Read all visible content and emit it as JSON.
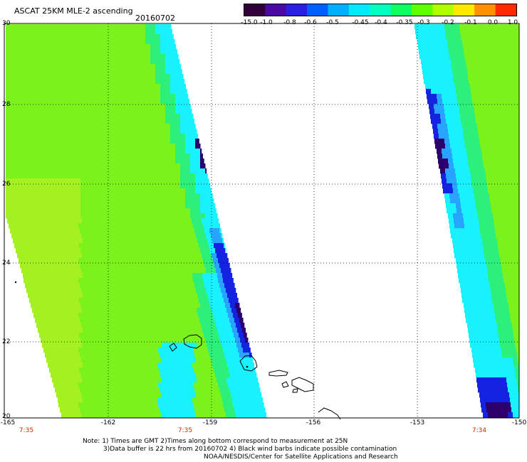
{
  "title": "ASCAT 25KM MLE-2 ascending",
  "date": "20160702",
  "colorbar": {
    "labels": [
      "-15.0",
      "-1.0",
      "-0.8",
      "-0.6",
      "-0.5",
      "-0.45",
      "-0.4",
      "-0.35",
      "-0.3",
      "-0.2",
      "-0.1",
      "0.0",
      "1.0"
    ],
    "colors": [
      "#30003a",
      "#4a0aa0",
      "#2a1ee0",
      "#0060ff",
      "#00b0ff",
      "#00eaff",
      "#00ffc0",
      "#10ff60",
      "#60ff00",
      "#b0ff00",
      "#ffe800",
      "#ff9000",
      "#ff2a00"
    ]
  },
  "lat_labels": [
    "30",
    "28",
    "26",
    "24",
    "22",
    "20"
  ],
  "lon_labels": [
    "-165",
    "-162",
    "-159",
    "-156",
    "-153",
    "-150"
  ],
  "time_labels": [
    "7:35",
    "7:35",
    "7:34"
  ],
  "notes": {
    "line1": "Note: 1) Times are GMT 2)Times along bottom correspond to measurement at 25N",
    "line2": "3)Data buffer is 22 hrs from 20160702 4) Black wind barbs indicate possible contamination",
    "line3": "NOAA/NESDIS/Center for Satellite Applications and Research"
  },
  "swath_colors": {
    "green": "#7cf21c",
    "lime": "#a4f020",
    "seagreen": "#2cf07a",
    "cyan": "#18f2ff",
    "lightblue": "#26a4ff",
    "blue": "#1422e2",
    "purple": "#2c006c"
  }
}
